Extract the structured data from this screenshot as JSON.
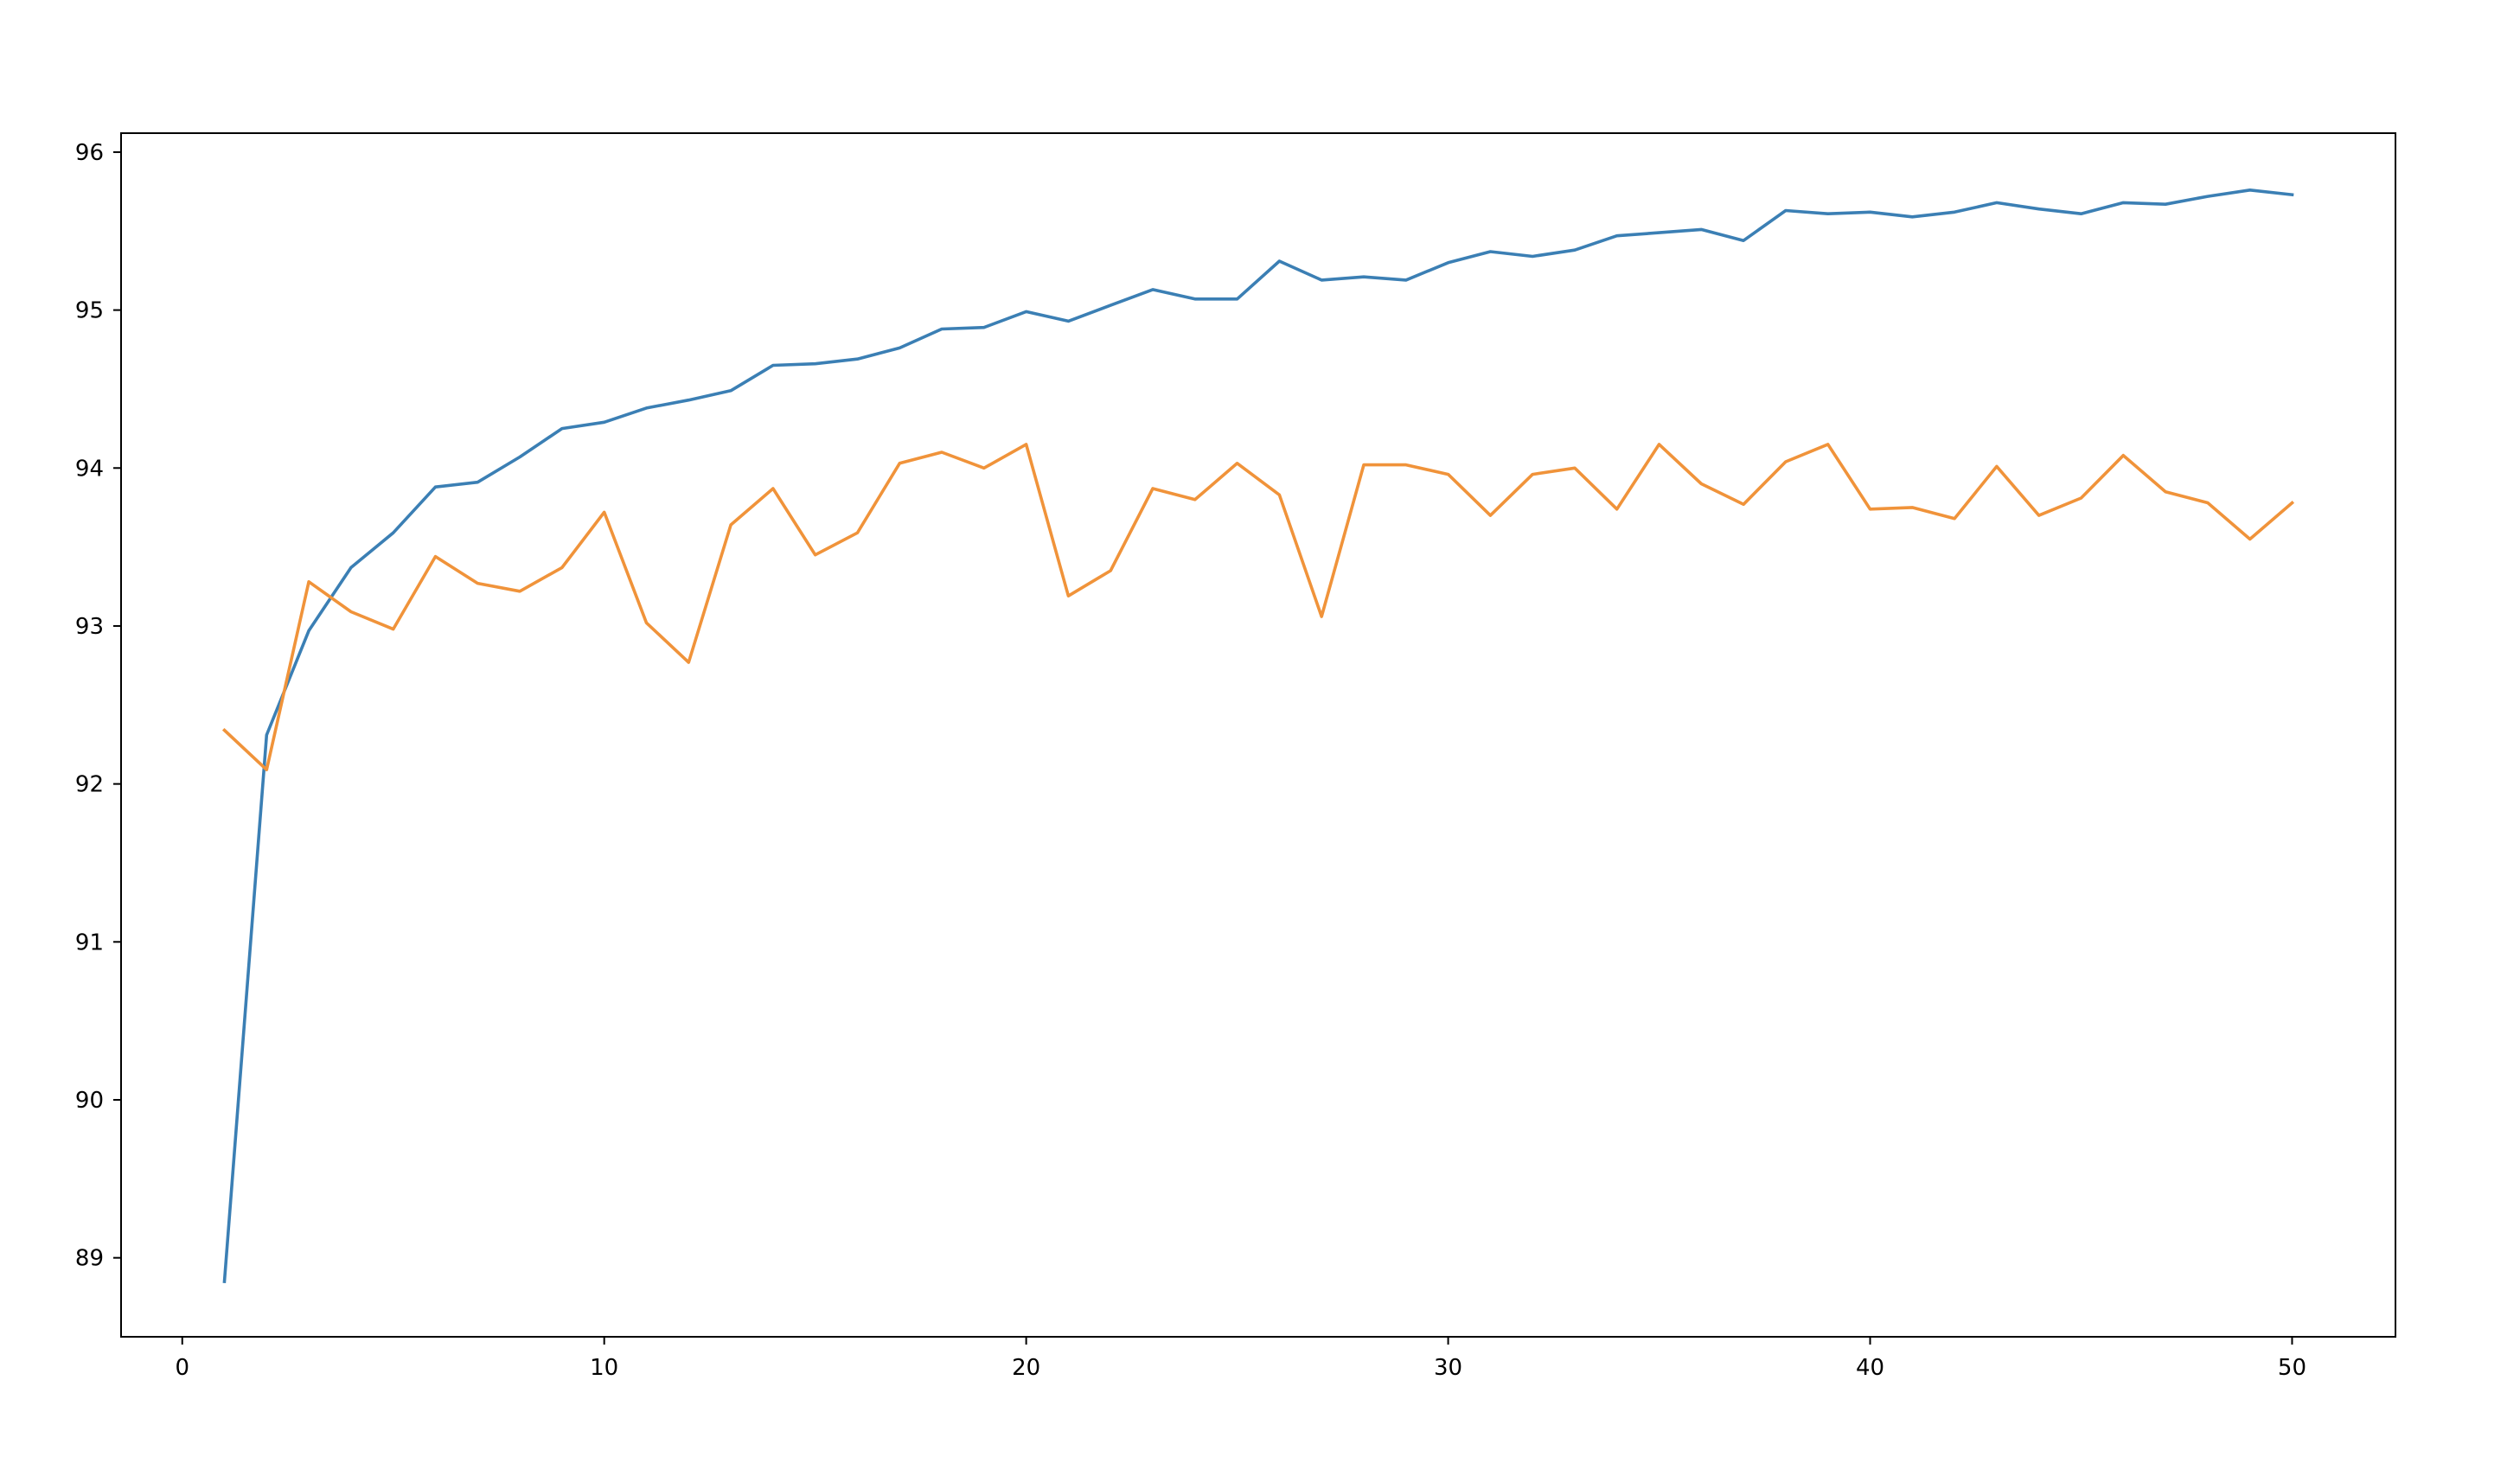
{
  "chart_data": {
    "type": "line",
    "title": "",
    "xlabel": "",
    "ylabel": "",
    "xlim": [
      -1.45,
      52.45
    ],
    "ylim": [
      88.5,
      96.12
    ],
    "xticks": [
      0,
      10,
      20,
      30,
      40,
      50
    ],
    "yticks": [
      89,
      90,
      91,
      92,
      93,
      94,
      95,
      96
    ],
    "grid": false,
    "legend": null,
    "x": [
      1,
      2,
      3,
      4,
      5,
      6,
      7,
      8,
      9,
      10,
      11,
      12,
      13,
      14,
      15,
      16,
      17,
      18,
      19,
      20,
      21,
      22,
      23,
      24,
      25,
      26,
      27,
      28,
      29,
      30,
      31,
      32,
      33,
      34,
      35,
      36,
      37,
      38,
      39,
      40,
      41,
      42,
      43,
      44,
      45,
      46,
      47,
      48,
      49,
      50
    ],
    "series": [
      {
        "color": "#3b7fb4",
        "values": [
          88.85,
          92.31,
          92.97,
          93.37,
          93.59,
          93.88,
          93.91,
          94.07,
          94.25,
          94.29,
          94.38,
          94.43,
          94.49,
          94.65,
          94.66,
          94.69,
          94.76,
          94.88,
          94.89,
          94.99,
          94.93,
          95.03,
          95.13,
          95.07,
          95.07,
          95.31,
          95.19,
          95.21,
          95.19,
          95.3,
          95.37,
          95.34,
          95.38,
          95.47,
          95.49,
          95.51,
          95.44,
          95.63,
          95.61,
          95.62,
          95.59,
          95.62,
          95.68,
          95.64,
          95.61,
          95.68,
          95.67,
          95.72,
          95.76,
          95.73
        ]
      },
      {
        "color": "#f0933a",
        "values": [
          92.34,
          92.09,
          93.28,
          93.09,
          92.98,
          93.44,
          93.27,
          93.22,
          93.37,
          93.72,
          93.02,
          92.77,
          93.64,
          93.87,
          93.45,
          93.59,
          94.03,
          94.1,
          94.0,
          94.15,
          93.19,
          93.35,
          93.87,
          93.8,
          94.03,
          93.83,
          93.06,
          94.02,
          94.02,
          93.96,
          93.7,
          93.96,
          94.0,
          93.74,
          94.15,
          93.9,
          93.77,
          94.04,
          94.15,
          93.74,
          93.75,
          93.68,
          94.01,
          93.7,
          93.81,
          94.08,
          93.85,
          93.78,
          93.55,
          93.78
        ]
      }
    ]
  }
}
